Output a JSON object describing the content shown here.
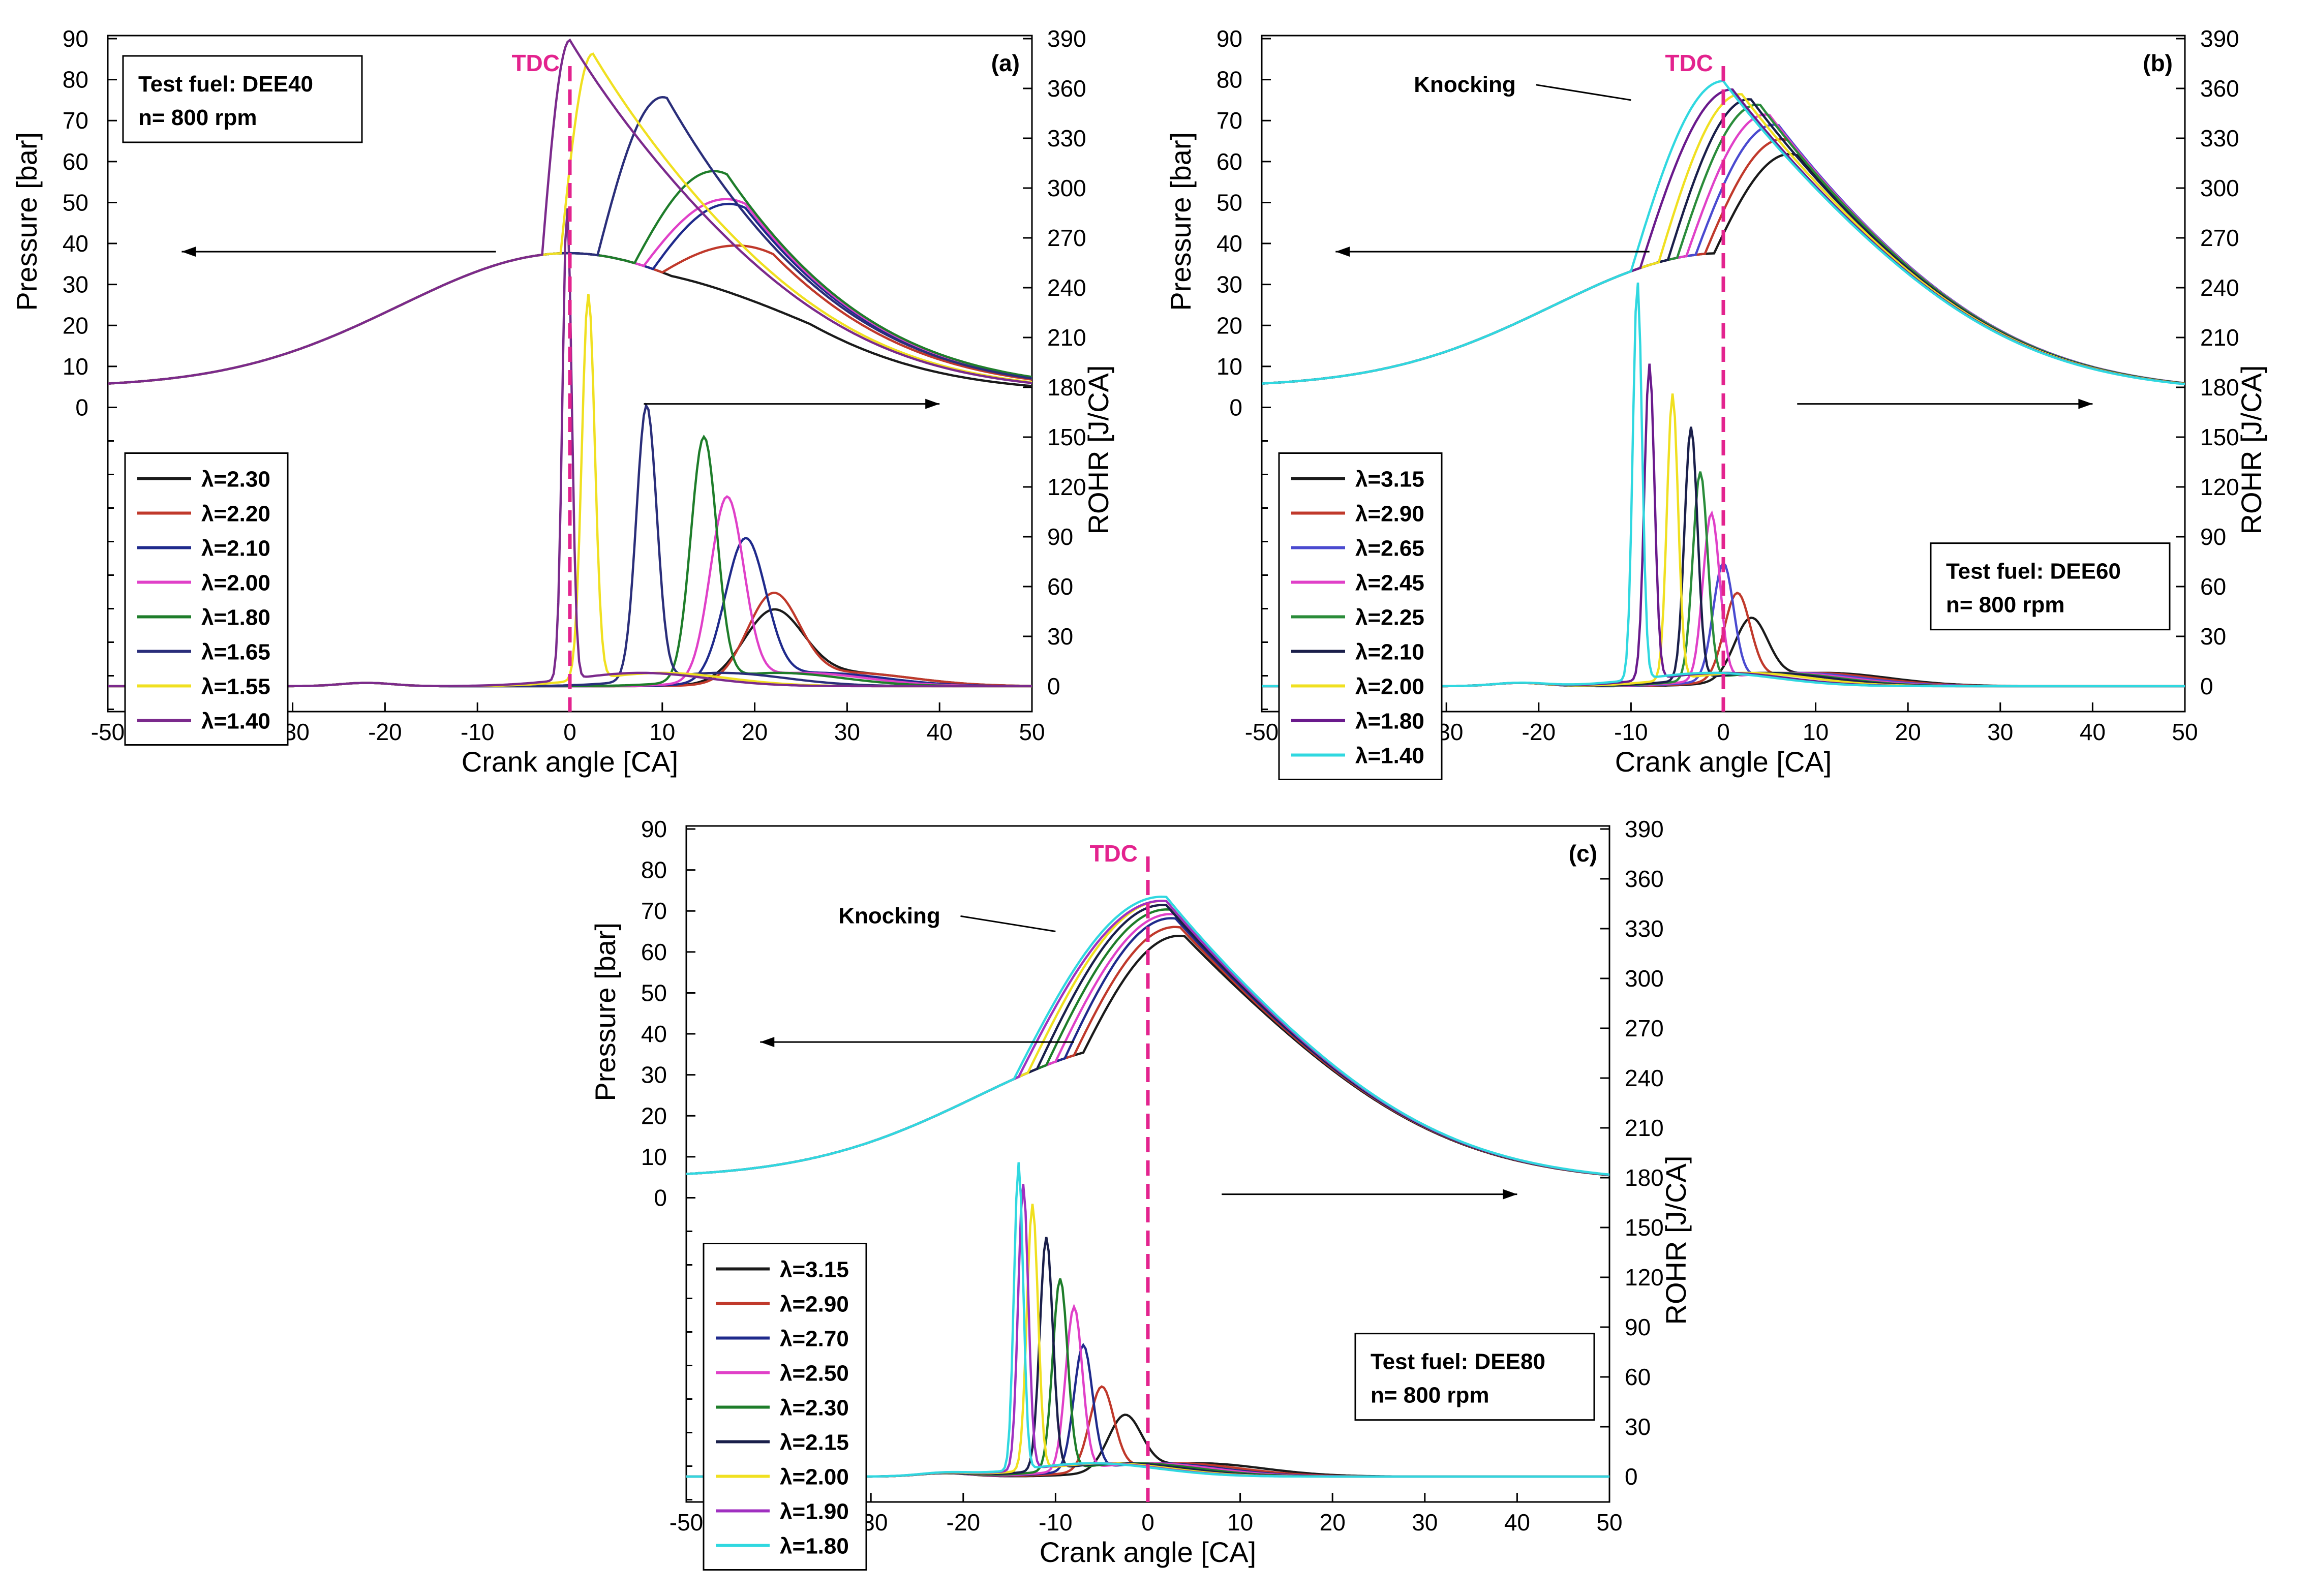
{
  "figure": {
    "panels": [
      {
        "id": "a",
        "label": "(a)",
        "fuel": "Test fuel: DEE40",
        "speed": "n= 800 rpm"
      },
      {
        "id": "b",
        "label": "(b)",
        "fuel": "Test fuel: DEE60",
        "speed": "n= 800 rpm",
        "annotation": "Knocking"
      },
      {
        "id": "c",
        "label": "(c)",
        "fuel": "Test fuel: DEE80",
        "speed": "n= 800 rpm",
        "annotation": "Knocking"
      }
    ]
  },
  "chart_data": [
    {
      "type": "line",
      "panel": "(a)",
      "xlabel": "Crank angle [CA]",
      "ylabel_left": "Pressure [bar]",
      "ylabel_right": "ROHR [J/CA]",
      "xlim": [
        -50,
        50
      ],
      "xticks": [
        -50,
        -40,
        -30,
        -20,
        -10,
        0,
        10,
        20,
        30,
        40,
        50
      ],
      "ylim_left": [
        0,
        90
      ],
      "yticks_left": [
        0,
        10,
        20,
        30,
        40,
        50,
        60,
        70,
        80,
        90
      ],
      "ylim_right": [
        0,
        390
      ],
      "yticks_right": [
        0,
        30,
        60,
        90,
        120,
        150,
        180,
        210,
        240,
        270,
        300,
        330,
        360,
        390
      ],
      "vline": {
        "x": 0,
        "label": "TDC",
        "color": "#e3238e"
      },
      "textbox": [
        "Test fuel: DEE40",
        "n= 800 rpm"
      ],
      "legend_title_symbol": "λ",
      "series": [
        {
          "name": "λ=2.30",
          "color": "#1a1a1a",
          "pressure": {
            "onset": 11,
            "width": 6,
            "peak_x": 26,
            "peak_p": 37
          },
          "rohr": {
            "peak_x": 22,
            "peak_y": 42,
            "sigma": 3.2
          }
        },
        {
          "name": "λ=2.20",
          "color": "#c0392b",
          "pressure": {
            "onset": 10,
            "width": 6,
            "peak_x": 22,
            "peak_p": 50
          },
          "rohr": {
            "peak_x": 22,
            "peak_y": 52,
            "sigma": 2.8
          }
        },
        {
          "name": "λ=2.10",
          "color": "#1f2a8c",
          "pressure": {
            "onset": 9,
            "width": 5,
            "peak_x": 19,
            "peak_p": 58
          },
          "rohr": {
            "peak_x": 19,
            "peak_y": 85,
            "sigma": 2.2
          }
        },
        {
          "name": "λ=2.00",
          "color": "#e040c8",
          "pressure": {
            "onset": 8,
            "width": 5,
            "peak_x": 19,
            "peak_p": 59
          },
          "rohr": {
            "peak_x": 17,
            "peak_y": 110,
            "sigma": 1.8
          }
        },
        {
          "name": "λ=1.80",
          "color": "#1e7d2a",
          "pressure": {
            "onset": 7,
            "width": 5,
            "peak_x": 17,
            "peak_p": 64
          },
          "rohr": {
            "peak_x": 14.5,
            "peak_y": 146,
            "sigma": 1.4
          }
        },
        {
          "name": "λ=1.65",
          "color": "#2a2e7a",
          "pressure": {
            "onset": 3,
            "width": 5,
            "peak_x": 10.5,
            "peak_p": 76
          },
          "rohr": {
            "peak_x": 8.3,
            "peak_y": 165,
            "sigma": 1.1
          }
        },
        {
          "name": "λ=1.55",
          "color": "#f0e020",
          "pressure": {
            "onset": -1,
            "width": 3,
            "peak_x": 2.5,
            "peak_p": 82
          },
          "rohr": {
            "peak_x": 2,
            "peak_y": 232,
            "sigma": 0.7
          }
        },
        {
          "name": "λ=1.40",
          "color": "#7b2a8c",
          "pressure": {
            "onset": -3,
            "width": 3,
            "peak_x": 0,
            "peak_p": 85
          },
          "rohr": {
            "peak_x": -0.3,
            "peak_y": 285,
            "sigma": 0.5
          }
        }
      ]
    },
    {
      "type": "line",
      "panel": "(b)",
      "xlabel": "Crank angle [CA]",
      "ylabel_left": "Pressure [bar]",
      "ylabel_right": "ROHR [J/CA]",
      "xlim": [
        -50,
        50
      ],
      "xticks": [
        -50,
        -40,
        -30,
        -20,
        -10,
        0,
        10,
        20,
        30,
        40,
        50
      ],
      "ylim_left": [
        0,
        90
      ],
      "yticks_left": [
        0,
        10,
        20,
        30,
        40,
        50,
        60,
        70,
        80,
        90
      ],
      "ylim_right": [
        0,
        390
      ],
      "yticks_right": [
        0,
        30,
        60,
        90,
        120,
        150,
        180,
        210,
        240,
        270,
        300,
        330,
        360,
        390
      ],
      "vline": {
        "x": 0,
        "label": "TDC",
        "color": "#e3238e"
      },
      "textbox": [
        "Test fuel: DEE60",
        "n= 800 rpm"
      ],
      "annotation": {
        "text": "Knocking",
        "arrow_to_x": -10,
        "arrow_to_p": 75
      },
      "series": [
        {
          "name": "λ=3.15",
          "color": "#1a1a1a",
          "pressure": {
            "onset": -1,
            "width": 6,
            "peak_x": 8,
            "peak_p": 60
          },
          "rohr": {
            "peak_x": 3,
            "peak_y": 37,
            "sigma": 1.8
          }
        },
        {
          "name": "λ=2.90",
          "color": "#c0392b",
          "pressure": {
            "onset": -2,
            "width": 6,
            "peak_x": 7,
            "peak_p": 63
          },
          "rohr": {
            "peak_x": 1.5,
            "peak_y": 52,
            "sigma": 1.4
          }
        },
        {
          "name": "λ=2.65",
          "color": "#4a4ad0",
          "pressure": {
            "onset": -3,
            "width": 5,
            "peak_x": 6,
            "peak_p": 66
          },
          "rohr": {
            "peak_x": 0,
            "peak_y": 70,
            "sigma": 1.1
          }
        },
        {
          "name": "λ=2.45",
          "color": "#e040c8",
          "pressure": {
            "onset": -4,
            "width": 5,
            "peak_x": 5,
            "peak_p": 68
          },
          "rohr": {
            "peak_x": -1.3,
            "peak_y": 100,
            "sigma": 0.9
          }
        },
        {
          "name": "λ=2.25",
          "color": "#2a8c3a",
          "pressure": {
            "onset": -5,
            "width": 4,
            "peak_x": 4,
            "peak_p": 70
          },
          "rohr": {
            "peak_x": -2.5,
            "peak_y": 125,
            "sigma": 0.8
          }
        },
        {
          "name": "λ=2.10",
          "color": "#1a1f4a",
          "pressure": {
            "onset": -6,
            "width": 4,
            "peak_x": 3,
            "peak_p": 71
          },
          "rohr": {
            "peak_x": -3.5,
            "peak_y": 152,
            "sigma": 0.7
          }
        },
        {
          "name": "λ=2.00",
          "color": "#f0e020",
          "pressure": {
            "onset": -7,
            "width": 3,
            "peak_x": 2,
            "peak_p": 72
          },
          "rohr": {
            "peak_x": -5.5,
            "peak_y": 172,
            "sigma": 0.6
          }
        },
        {
          "name": "λ=1.80",
          "color": "#6a1a8c",
          "pressure": {
            "onset": -9,
            "width": 2,
            "peak_x": 1,
            "peak_p": 73
          },
          "rohr": {
            "peak_x": -8,
            "peak_y": 190,
            "sigma": 0.55
          }
        },
        {
          "name": "λ=1.40",
          "color": "#30d8e0",
          "pressure": {
            "onset": -10,
            "width": 1.2,
            "peak_x": 0,
            "peak_p": 75
          },
          "rohr": {
            "peak_x": -9.3,
            "peak_y": 240,
            "sigma": 0.5
          }
        }
      ]
    },
    {
      "type": "line",
      "panel": "(c)",
      "xlabel": "Crank angle [CA]",
      "ylabel_left": "Pressure [bar]",
      "ylabel_right": "ROHR [J/CA]",
      "xlim": [
        -50,
        50
      ],
      "xticks": [
        -50,
        -40,
        -30,
        -20,
        -10,
        0,
        10,
        20,
        30,
        40,
        50
      ],
      "ylim_left": [
        0,
        90
      ],
      "yticks_left": [
        0,
        10,
        20,
        30,
        40,
        50,
        60,
        70,
        80,
        90
      ],
      "ylim_right": [
        0,
        390
      ],
      "yticks_right": [
        0,
        30,
        60,
        90,
        120,
        150,
        180,
        210,
        240,
        270,
        300,
        330,
        360,
        390
      ],
      "vline": {
        "x": 0,
        "label": "TDC",
        "color": "#e3238e"
      },
      "textbox": [
        "Test fuel: DEE80",
        "n= 800 rpm"
      ],
      "annotation": {
        "text": "Knocking",
        "arrow_to_x": -10,
        "arrow_to_p": 65
      },
      "series": [
        {
          "name": "λ=3.15",
          "color": "#1a1a1a",
          "pressure": {
            "onset": -7,
            "width": 6,
            "peak_x": 4,
            "peak_p": 60
          },
          "rohr": {
            "peak_x": -2.5,
            "peak_y": 33,
            "sigma": 1.8
          }
        },
        {
          "name": "λ=2.90",
          "color": "#c0392b",
          "pressure": {
            "onset": -8,
            "width": 6,
            "peak_x": 3.5,
            "peak_p": 62
          },
          "rohr": {
            "peak_x": -5,
            "peak_y": 50,
            "sigma": 1.3
          }
        },
        {
          "name": "λ=2.70",
          "color": "#1f2a8c",
          "pressure": {
            "onset": -9,
            "width": 5,
            "peak_x": 3,
            "peak_p": 64
          },
          "rohr": {
            "peak_x": -7,
            "peak_y": 75,
            "sigma": 1.0
          }
        },
        {
          "name": "λ=2.50",
          "color": "#e040c8",
          "pressure": {
            "onset": -10,
            "width": 5,
            "peak_x": 3,
            "peak_p": 65
          },
          "rohr": {
            "peak_x": -8,
            "peak_y": 98,
            "sigma": 0.9
          }
        },
        {
          "name": "λ=2.30",
          "color": "#1e7d2a",
          "pressure": {
            "onset": -11,
            "width": 4,
            "peak_x": 2.5,
            "peak_p": 66
          },
          "rohr": {
            "peak_x": -9.5,
            "peak_y": 115,
            "sigma": 0.8
          }
        },
        {
          "name": "λ=2.15",
          "color": "#1a1f4a",
          "pressure": {
            "onset": -12,
            "width": 3,
            "peak_x": 2,
            "peak_p": 67
          },
          "rohr": {
            "peak_x": -11,
            "peak_y": 140,
            "sigma": 0.7
          }
        },
        {
          "name": "λ=2.00",
          "color": "#f0e020",
          "pressure": {
            "onset": -13,
            "width": 2,
            "peak_x": 2,
            "peak_p": 68
          },
          "rohr": {
            "peak_x": -12.5,
            "peak_y": 160,
            "sigma": 0.6
          }
        },
        {
          "name": "λ=1.90",
          "color": "#a030c0",
          "pressure": {
            "onset": -14,
            "width": 1.6,
            "peak_x": 2,
            "peak_p": 68
          },
          "rohr": {
            "peak_x": -13.5,
            "peak_y": 172,
            "sigma": 0.55
          }
        },
        {
          "name": "λ=1.80",
          "color": "#30d8e0",
          "pressure": {
            "onset": -14.5,
            "width": 1.2,
            "peak_x": 2,
            "peak_p": 69
          },
          "rohr": {
            "peak_x": -14,
            "peak_y": 185,
            "sigma": 0.5
          }
        }
      ]
    }
  ]
}
